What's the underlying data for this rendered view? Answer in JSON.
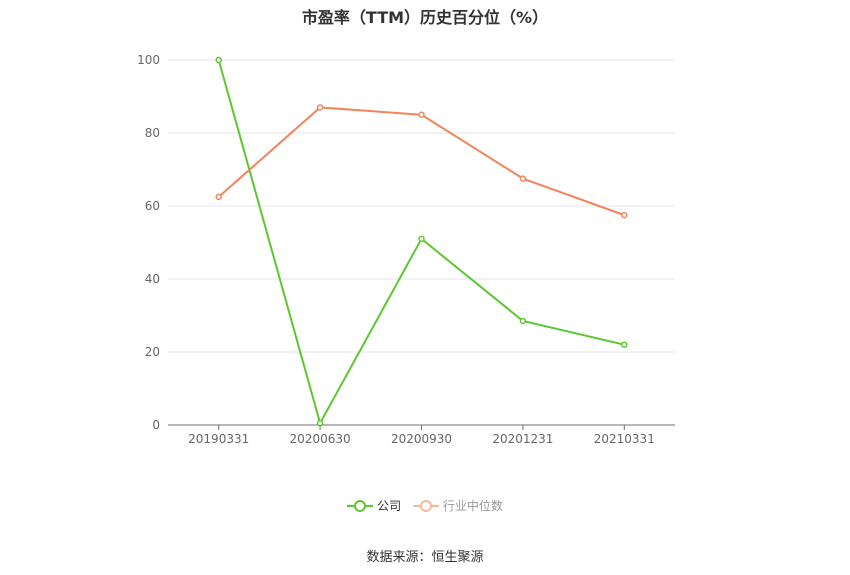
{
  "chart_data": {
    "type": "line",
    "title": "市盈率（TTM）历史百分位（%）",
    "categories": [
      "20190331",
      "20200630",
      "20200930",
      "20201231",
      "20210331"
    ],
    "ylim": [
      0,
      100
    ],
    "yticks": [
      0,
      20,
      40,
      60,
      80,
      100
    ],
    "grid": true,
    "legend_position": "bottom",
    "series": [
      {
        "name": "公司",
        "color": "#5cc72e",
        "values": [
          100,
          0.5,
          51,
          28.5,
          22
        ]
      },
      {
        "name": "行业中位数",
        "color": "#f0865a",
        "values": [
          62.5,
          87,
          85,
          67.5,
          57.5
        ]
      }
    ]
  },
  "legend": {
    "items": [
      "公司",
      "行业中位数"
    ]
  },
  "source": "数据来源：恒生聚源"
}
